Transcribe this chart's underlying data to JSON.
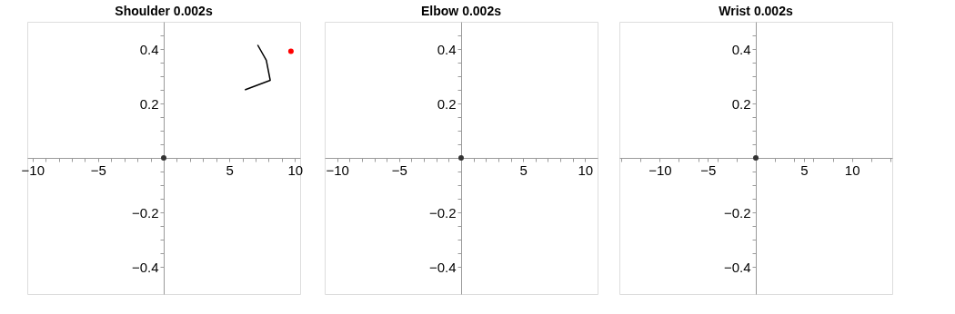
{
  "chart_data": [
    {
      "type": "line",
      "title": "Shoulder 0.002s",
      "xlim": [
        -10.4,
        10.4
      ],
      "ylim": [
        -0.5,
        0.5
      ],
      "xticks": [
        -10,
        {
          "value": -9,
          "label": null
        },
        {
          "value": -8,
          "label": null
        },
        {
          "value": -7,
          "label": null
        },
        {
          "value": -6,
          "label": null
        },
        -5,
        {
          "value": -4,
          "label": null
        },
        {
          "value": -3,
          "label": null
        },
        {
          "value": -2,
          "label": null
        },
        {
          "value": -1,
          "label": null
        },
        {
          "value": 1,
          "label": null
        },
        {
          "value": 2,
          "label": null
        },
        {
          "value": 3,
          "label": null
        },
        {
          "value": 4,
          "label": null
        },
        5,
        {
          "value": 6,
          "label": null
        },
        {
          "value": 7,
          "label": null
        },
        {
          "value": 8,
          "label": null
        },
        {
          "value": 9,
          "label": null
        },
        10
      ],
      "yticks": [
        -0.4,
        {
          "value": -0.35,
          "label": null
        },
        {
          "value": -0.3,
          "label": null
        },
        {
          "value": -0.25,
          "label": null
        },
        -0.2,
        {
          "value": -0.15,
          "label": null
        },
        {
          "value": -0.1,
          "label": null
        },
        {
          "value": -0.05,
          "label": null
        },
        {
          "value": 0.05,
          "label": null
        },
        {
          "value": 0.1,
          "label": null
        },
        {
          "value": 0.15,
          "label": null
        },
        0.2,
        {
          "value": 0.25,
          "label": null
        },
        {
          "value": 0.3,
          "label": null
        },
        {
          "value": 0.35,
          "label": null
        },
        0.4,
        {
          "value": 0.45,
          "label": null
        }
      ],
      "grid": false,
      "series": [
        {
          "color": "#000000",
          "x": [
            7.16,
            7.82,
            8.12,
            6.19
          ],
          "values": [
            0.415,
            0.359,
            0.285,
            0.25
          ]
        },
        {
          "type": "scatter",
          "color": "#ff0000",
          "x": [
            9.7
          ],
          "values": [
            0.392
          ]
        },
        {
          "type": "scatter",
          "color": "#333333",
          "x": [
            0
          ],
          "values": [
            0
          ]
        }
      ]
    },
    {
      "type": "scatter",
      "title": "Elbow 0.002s",
      "xlim": [
        -11,
        11
      ],
      "ylim": [
        -0.5,
        0.5
      ],
      "xticks": [
        -10,
        {
          "value": -9,
          "label": null
        },
        {
          "value": -8,
          "label": null
        },
        {
          "value": -7,
          "label": null
        },
        {
          "value": -6,
          "label": null
        },
        -5,
        {
          "value": -4,
          "label": null
        },
        {
          "value": -3,
          "label": null
        },
        {
          "value": -2,
          "label": null
        },
        {
          "value": -1,
          "label": null
        },
        {
          "value": 1,
          "label": null
        },
        {
          "value": 2,
          "label": null
        },
        {
          "value": 3,
          "label": null
        },
        {
          "value": 4,
          "label": null
        },
        5,
        {
          "value": 6,
          "label": null
        },
        {
          "value": 7,
          "label": null
        },
        {
          "value": 8,
          "label": null
        },
        {
          "value": 9,
          "label": null
        },
        10
      ],
      "yticks": [
        -0.4,
        {
          "value": -0.35,
          "label": null
        },
        {
          "value": -0.3,
          "label": null
        },
        {
          "value": -0.25,
          "label": null
        },
        -0.2,
        {
          "value": -0.15,
          "label": null
        },
        {
          "value": -0.1,
          "label": null
        },
        {
          "value": -0.05,
          "label": null
        },
        {
          "value": 0.05,
          "label": null
        },
        {
          "value": 0.1,
          "label": null
        },
        {
          "value": 0.15,
          "label": null
        },
        0.2,
        {
          "value": 0.25,
          "label": null
        },
        {
          "value": 0.3,
          "label": null
        },
        {
          "value": 0.35,
          "label": null
        },
        0.4,
        {
          "value": 0.45,
          "label": null
        }
      ],
      "grid": false,
      "series": [
        {
          "color": "#333333",
          "x": [
            0
          ],
          "values": [
            0
          ]
        }
      ]
    },
    {
      "type": "scatter",
      "title": "Wrist 0.002s",
      "xlim": [
        -14.2,
        14.2
      ],
      "ylim": [
        -0.5,
        0.5
      ],
      "xticks": [
        {
          "value": -14,
          "label": null
        },
        {
          "value": -12,
          "label": null
        },
        -10,
        {
          "value": -8,
          "label": null
        },
        {
          "value": -6,
          "label": null
        },
        -5,
        {
          "value": -4,
          "label": null
        },
        {
          "value": -2,
          "label": null
        },
        {
          "value": 2,
          "label": null
        },
        {
          "value": 4,
          "label": null
        },
        5,
        {
          "value": 6,
          "label": null
        },
        {
          "value": 8,
          "label": null
        },
        10,
        {
          "value": 12,
          "label": null
        },
        {
          "value": 14,
          "label": null
        }
      ],
      "yticks": [
        -0.4,
        {
          "value": -0.35,
          "label": null
        },
        {
          "value": -0.3,
          "label": null
        },
        {
          "value": -0.25,
          "label": null
        },
        -0.2,
        {
          "value": -0.15,
          "label": null
        },
        {
          "value": -0.1,
          "label": null
        },
        {
          "value": -0.05,
          "label": null
        },
        {
          "value": 0.05,
          "label": null
        },
        {
          "value": 0.1,
          "label": null
        },
        {
          "value": 0.15,
          "label": null
        },
        0.2,
        {
          "value": 0.25,
          "label": null
        },
        {
          "value": 0.3,
          "label": null
        },
        {
          "value": 0.35,
          "label": null
        },
        0.4,
        {
          "value": 0.45,
          "label": null
        }
      ],
      "grid": false,
      "series": [
        {
          "color": "#333333",
          "x": [
            0
          ],
          "values": [
            0
          ]
        }
      ]
    }
  ]
}
